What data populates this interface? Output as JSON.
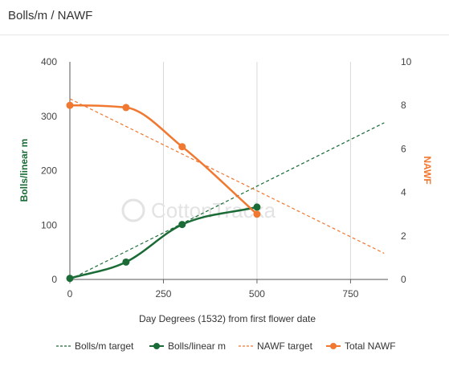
{
  "panel": {
    "title": "Bolls/m / NAWF"
  },
  "watermark": {
    "text": "CottonTracka"
  },
  "chart_data": {
    "type": "line",
    "xlabel": "Day Degrees (1532) from first flower date",
    "ylabel_left": "Bolls/linear m",
    "ylabel_right": "NAWF",
    "xlim": [
      0,
      850
    ],
    "ylim_left": [
      0,
      400
    ],
    "ylim_right": [
      0,
      10
    ],
    "xticks": [
      0,
      250,
      500,
      750
    ],
    "yticks_left": [
      0,
      100,
      200,
      300,
      400
    ],
    "yticks_right": [
      0,
      2,
      4,
      6,
      8,
      10
    ],
    "grid": "vertical",
    "legend_position": "bottom",
    "colors": {
      "green": "#1a6b36",
      "orange": "#f07830"
    },
    "series": [
      {
        "name": "Bolls/m target",
        "axis": "left",
        "style": "dashed",
        "color": "#1a6b36",
        "x": [
          0,
          840
        ],
        "y": [
          0,
          288
        ]
      },
      {
        "name": "Bolls/linear m",
        "axis": "left",
        "style": "solid-markers",
        "color": "#1a6b36",
        "x": [
          0,
          150,
          300,
          500
        ],
        "y": [
          2,
          32,
          101,
          133
        ]
      },
      {
        "name": "NAWF target",
        "axis": "right",
        "style": "dashed",
        "color": "#f07830",
        "x": [
          0,
          840
        ],
        "y": [
          8.3,
          1.2
        ]
      },
      {
        "name": "Total NAWF",
        "axis": "right",
        "style": "solid-markers",
        "color": "#f07830",
        "x": [
          0,
          150,
          300,
          500
        ],
        "y": [
          8.0,
          7.9,
          6.1,
          3.0
        ]
      }
    ]
  }
}
